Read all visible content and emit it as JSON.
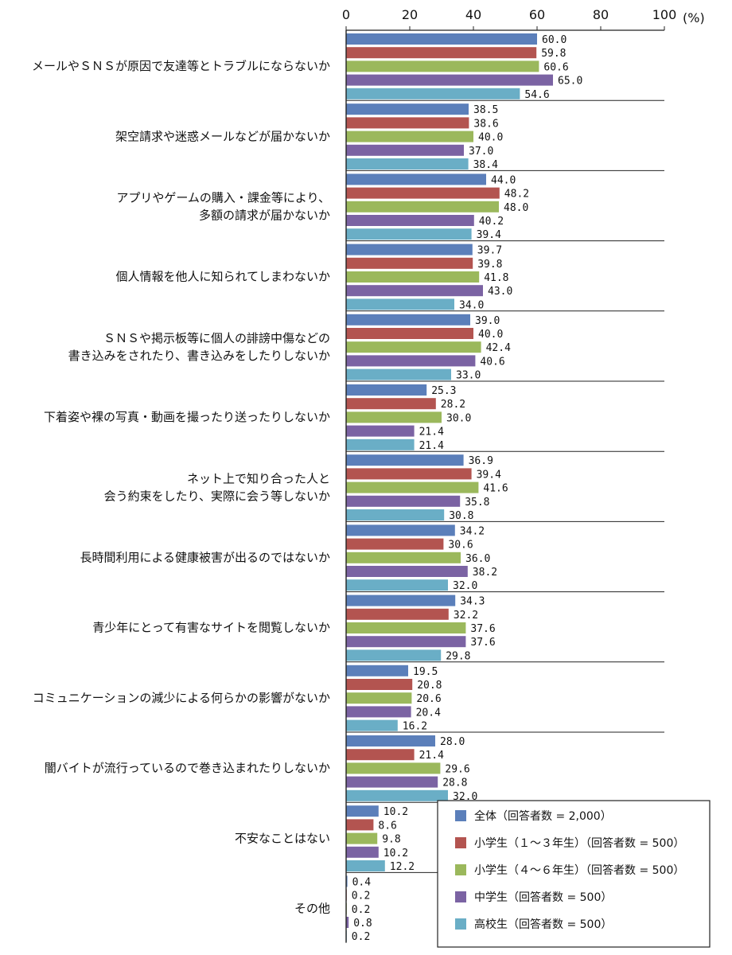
{
  "chart_data": {
    "type": "bar",
    "orientation": "horizontal",
    "unit": "(%)",
    "xlim": [
      0,
      100
    ],
    "xticks": [
      0,
      20,
      40,
      60,
      80,
      100
    ],
    "categories": [
      [
        "メールやＳＮＳが原因で友達等とトラブルにならないか"
      ],
      [
        "架空請求や迷惑メールなどが届かないか"
      ],
      [
        "アプリやゲームの購入・課金等により、",
        "多額の請求が届かないか"
      ],
      [
        "個人情報を他人に知られてしまわないか"
      ],
      [
        "ＳＮＳや掲示板等に個人の誹謗中傷などの",
        "書き込みをされたり、書き込みをしたりしないか"
      ],
      [
        "下着姿や裸の写真・動画を撮ったり送ったりしないか"
      ],
      [
        "ネット上で知り合った人と",
        "会う約束をしたり、実際に会う等しないか"
      ],
      [
        "長時間利用による健康被害が出るのではないか"
      ],
      [
        "青少年にとって有害なサイトを閲覧しないか"
      ],
      [
        "コミュニケーションの減少による何らかの影響がないか"
      ],
      [
        "闇バイトが流行っているので巻き込まれたりしないか"
      ],
      [
        "不安なことはない"
      ],
      [
        "その他"
      ]
    ],
    "series": [
      {
        "name": "全体（回答者数 = 2,000）",
        "color": "#5b7fba",
        "values": [
          60.0,
          38.5,
          44.0,
          39.7,
          39.0,
          25.3,
          36.9,
          34.2,
          34.3,
          19.5,
          28.0,
          10.2,
          0.4
        ],
        "labels": [
          "60.0",
          "38.5",
          "44.0",
          "39.7",
          "39.0",
          "25.3",
          "36.9",
          "34.2",
          "34.3",
          "19.5",
          "28.0",
          "10.2",
          "0.4"
        ]
      },
      {
        "name": "小学生（１～３年生）（回答者数 = 500）",
        "color": "#b35450",
        "values": [
          59.8,
          38.6,
          48.2,
          39.8,
          40.0,
          28.2,
          39.4,
          30.6,
          32.2,
          20.8,
          21.4,
          8.6,
          0.2
        ],
        "labels": [
          "59.8",
          "38.6",
          "48.2",
          "39.8",
          "40.0",
          "28.2",
          "39.4",
          "30.6",
          "32.2",
          "20.8",
          "21.4",
          "8.6",
          "0.2"
        ]
      },
      {
        "name": "小学生（４～６年生）（回答者数 = 500）",
        "color": "#9bb85c",
        "values": [
          60.6,
          40.0,
          48.0,
          41.8,
          42.4,
          30.0,
          41.6,
          36.0,
          37.6,
          20.6,
          29.6,
          9.8,
          0.2
        ],
        "labels": [
          "60.6",
          "40.0",
          "48.0",
          "41.8",
          "42.4",
          "30.0",
          "41.6",
          "36.0",
          "37.6",
          "20.6",
          "29.6",
          "9.8",
          "0.2"
        ]
      },
      {
        "name": "中学生（回答者数 = 500）",
        "color": "#7b63a3",
        "values": [
          65.0,
          37.0,
          40.2,
          43.0,
          40.6,
          21.4,
          35.8,
          38.2,
          37.6,
          20.4,
          28.8,
          10.2,
          0.8
        ],
        "labels": [
          "65.0",
          "37.0",
          "40.2",
          "43.0",
          "40.6",
          "21.4",
          "35.8",
          "38.2",
          "37.6",
          "20.4",
          "28.8",
          "10.2",
          "0.8"
        ]
      },
      {
        "name": "高校生（回答者数 = 500）",
        "color": "#6aaec6",
        "values": [
          54.6,
          38.4,
          39.4,
          34.0,
          33.0,
          21.4,
          30.8,
          32.0,
          29.8,
          16.2,
          32.0,
          12.2,
          0.2
        ],
        "labels": [
          "54.6",
          "38.4",
          "39.4",
          "34.0",
          "33.0",
          "21.4",
          "30.8",
          "32.0",
          "29.8",
          "16.2",
          "32.0",
          "12.2",
          "0.2"
        ]
      }
    ],
    "legend_position": "bottom-right",
    "grid": false
  }
}
